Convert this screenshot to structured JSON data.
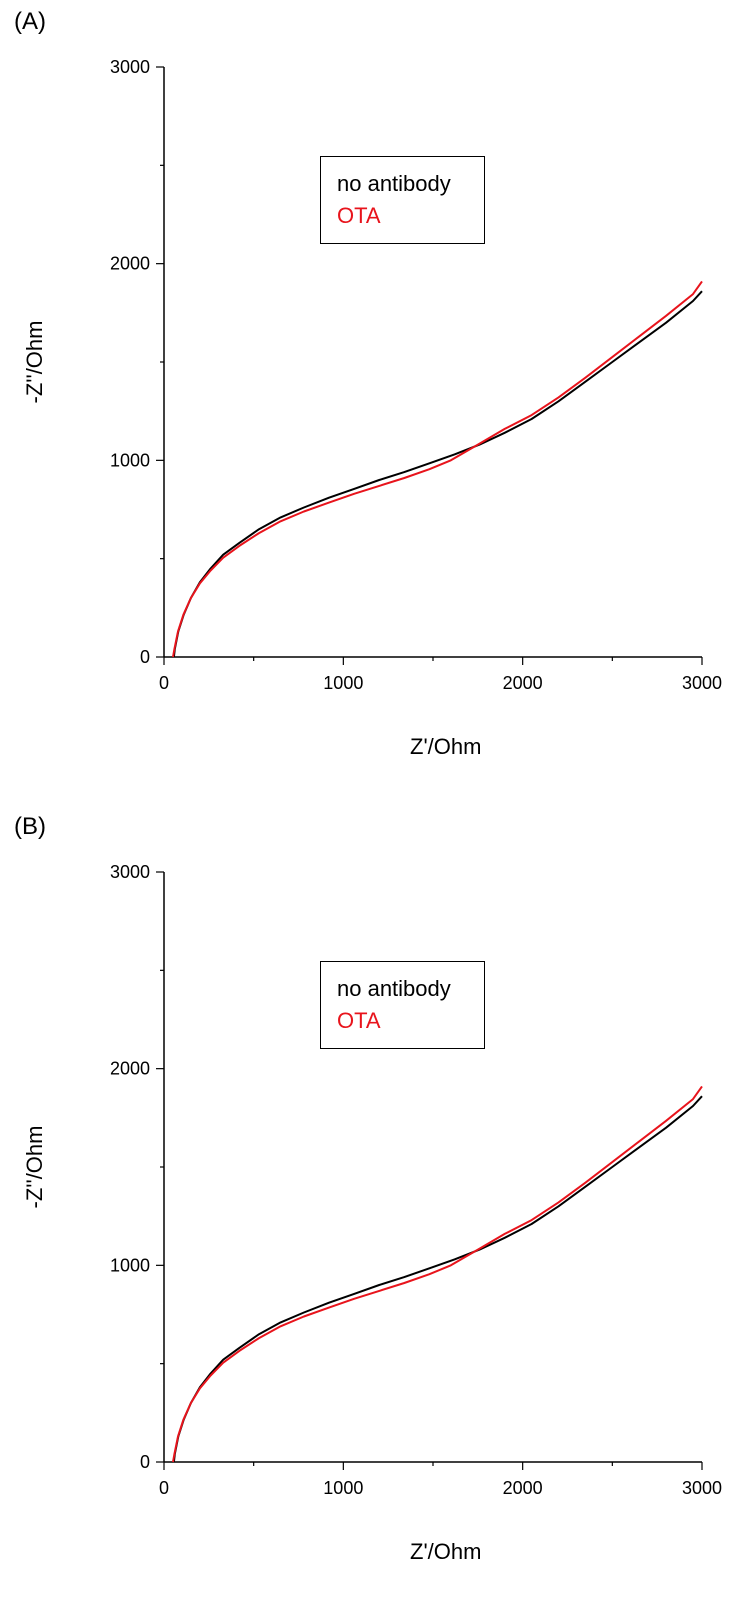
{
  "panels": [
    {
      "label": "(A)",
      "chart_data": {
        "type": "line",
        "title": "",
        "xlabel": "Z'/Ohm",
        "ylabel": "-Z''/Ohm",
        "xlim": [
          0,
          3000
        ],
        "ylim": [
          0,
          3000
        ],
        "xticks": [
          0,
          1000,
          2000,
          3000
        ],
        "yticks": [
          0,
          1000,
          2000,
          3000
        ],
        "grid": false,
        "legend_position": "upper-center",
        "series": [
          {
            "name": "no antibody",
            "color": "#000000",
            "x": [
              55,
              60,
              80,
              110,
              150,
              200,
              260,
              330,
              420,
              530,
              650,
              780,
              920,
              1060,
              1200,
              1340,
              1480,
              1620,
              1760,
              1900,
              2050,
              2200,
              2350,
              2500,
              2650,
              2800,
              2950,
              3000
            ],
            "y": [
              0,
              40,
              130,
              215,
              300,
              380,
              450,
              520,
              580,
              650,
              710,
              760,
              810,
              855,
              900,
              940,
              985,
              1030,
              1080,
              1140,
              1210,
              1300,
              1400,
              1500,
              1600,
              1700,
              1810,
              1860
            ]
          },
          {
            "name": "OTA",
            "color": "#e8141c",
            "x": [
              50,
              58,
              78,
              108,
              150,
              200,
              260,
              330,
              420,
              530,
              650,
              780,
              920,
              1060,
              1200,
              1340,
              1480,
              1600,
              1760,
              1900,
              2050,
              2200,
              2350,
              2500,
              2650,
              2800,
              2950,
              3000
            ],
            "y": [
              0,
              40,
              130,
              215,
              300,
              375,
              440,
              505,
              565,
              630,
              690,
              740,
              785,
              830,
              870,
              910,
              955,
              1000,
              1085,
              1160,
              1230,
              1320,
              1420,
              1525,
              1630,
              1735,
              1845,
              1910
            ]
          }
        ]
      }
    },
    {
      "label": "(B)",
      "chart_data": {
        "type": "line",
        "title": "",
        "xlabel": "Z'/Ohm",
        "ylabel": "-Z''/Ohm",
        "xlim": [
          0,
          3000
        ],
        "ylim": [
          0,
          3000
        ],
        "xticks": [
          0,
          1000,
          2000,
          3000
        ],
        "yticks": [
          0,
          1000,
          2000,
          3000
        ],
        "grid": false,
        "legend_position": "upper-center",
        "series": [
          {
            "name": "no antibody",
            "color": "#000000",
            "x": [
              55,
              60,
              80,
              110,
              150,
              200,
              260,
              330,
              420,
              530,
              650,
              780,
              920,
              1060,
              1200,
              1340,
              1480,
              1620,
              1760,
              1900,
              2050,
              2200,
              2350,
              2500,
              2650,
              2800,
              2950,
              3000
            ],
            "y": [
              0,
              40,
              130,
              215,
              300,
              380,
              450,
              520,
              580,
              650,
              710,
              760,
              810,
              855,
              900,
              940,
              985,
              1030,
              1080,
              1140,
              1210,
              1300,
              1400,
              1500,
              1600,
              1700,
              1810,
              1860
            ]
          },
          {
            "name": "OTA",
            "color": "#e8141c",
            "x": [
              50,
              58,
              78,
              108,
              150,
              200,
              260,
              330,
              420,
              530,
              650,
              780,
              920,
              1060,
              1200,
              1340,
              1480,
              1600,
              1760,
              1900,
              2050,
              2200,
              2350,
              2500,
              2650,
              2800,
              2950,
              3000
            ],
            "y": [
              0,
              40,
              130,
              215,
              300,
              375,
              440,
              505,
              565,
              630,
              690,
              740,
              785,
              830,
              870,
              910,
              955,
              1000,
              1085,
              1160,
              1230,
              1320,
              1420,
              1525,
              1630,
              1735,
              1845,
              1910
            ]
          }
        ]
      }
    }
  ]
}
